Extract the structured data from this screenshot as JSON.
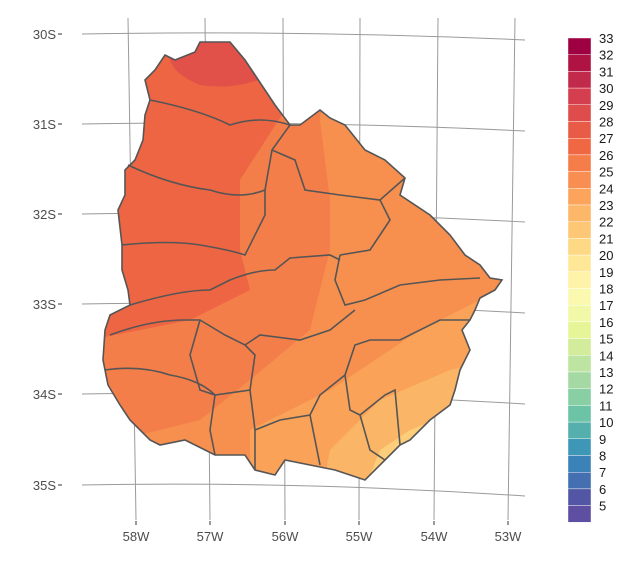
{
  "axes": {
    "y_ticks": [
      "30S",
      "31S",
      "32S",
      "33S",
      "34S",
      "35S"
    ],
    "x_ticks": [
      "58W",
      "57W",
      "56W",
      "55W",
      "54W",
      "53W"
    ]
  },
  "legend": {
    "labels": [
      "33",
      "32",
      "31",
      "30",
      "29",
      "28",
      "27",
      "26",
      "25",
      "24",
      "23",
      "22",
      "21",
      "20",
      "19",
      "18",
      "17",
      "16",
      "15",
      "14",
      "13",
      "12",
      "11",
      "10",
      "9",
      "8",
      "7",
      "6",
      "5"
    ],
    "colors": [
      "#9e0142",
      "#ae1343",
      "#c12a4b",
      "#d53e4f",
      "#de4c4b",
      "#e85b47",
      "#f06744",
      "#f57d4a",
      "#f98e52",
      "#fca35c",
      "#fdb768",
      "#fdc776",
      "#fed985",
      "#fee797",
      "#fff3aa",
      "#fbf9b0",
      "#f1f9a9",
      "#e6f598",
      "#d2ec9b",
      "#bde4a0",
      "#a4d9a4",
      "#88cfa4",
      "#6cc3a5",
      "#55b0ad",
      "#3f97b7",
      "#3a82b8",
      "#4470b1",
      "#5356a4",
      "#5e4fa2"
    ]
  },
  "map_colors": {
    "north": "#e2504a",
    "west": "#ee6543",
    "center": "#f47e4a",
    "east": "#f7904f",
    "south": "#f9a258",
    "southeast": "#fbb566",
    "coast": "#fdcd7a",
    "borders": "#555555",
    "grid": "#9a9a9a"
  }
}
